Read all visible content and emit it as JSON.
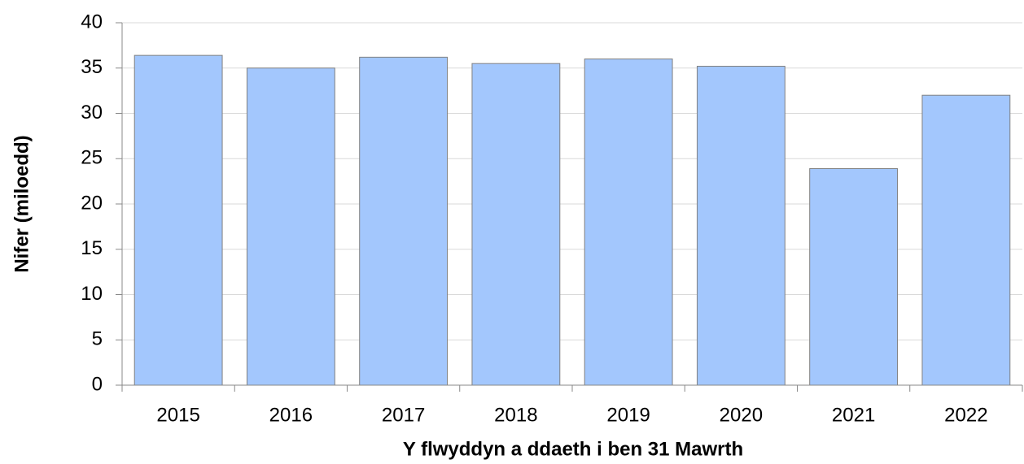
{
  "chart_data": {
    "type": "bar",
    "categories": [
      "2015",
      "2016",
      "2017",
      "2018",
      "2019",
      "2020",
      "2021",
      "2022"
    ],
    "values": [
      36.4,
      35.0,
      36.2,
      35.5,
      36.0,
      35.2,
      23.9,
      32.0
    ],
    "color": "#a3c7fd",
    "ylim": [
      0,
      40
    ],
    "yticks": [
      0,
      5,
      10,
      15,
      20,
      25,
      30,
      35,
      40
    ],
    "grid": true,
    "y_label": "Nifer (miloedd)",
    "x_label": "Y flwyddyn a ddaeth i ben 31 Mawrth"
  }
}
